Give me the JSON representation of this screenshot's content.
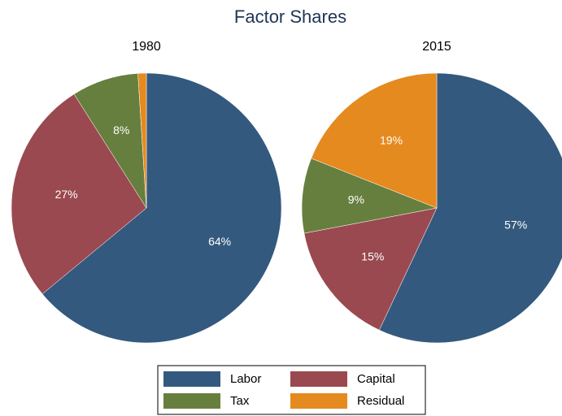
{
  "title": "Factor Shares",
  "chart_data": [
    {
      "type": "pie",
      "title": "1980",
      "categories": [
        "Labor",
        "Capital",
        "Tax",
        "Residual"
      ],
      "values": [
        64,
        27,
        8,
        1
      ],
      "value_labels": [
        "64%",
        "27%",
        "8%",
        null
      ],
      "colors": [
        "#34597e",
        "#9a4950",
        "#677f3e",
        "#e58a1f"
      ]
    },
    {
      "type": "pie",
      "title": "2015",
      "categories": [
        "Labor",
        "Capital",
        "Tax",
        "Residual"
      ],
      "values": [
        57,
        15,
        9,
        19
      ],
      "value_labels": [
        "57%",
        "15%",
        "9%",
        "19%"
      ],
      "colors": [
        "#34597e",
        "#9a4950",
        "#677f3e",
        "#e58a1f"
      ]
    }
  ]
}
